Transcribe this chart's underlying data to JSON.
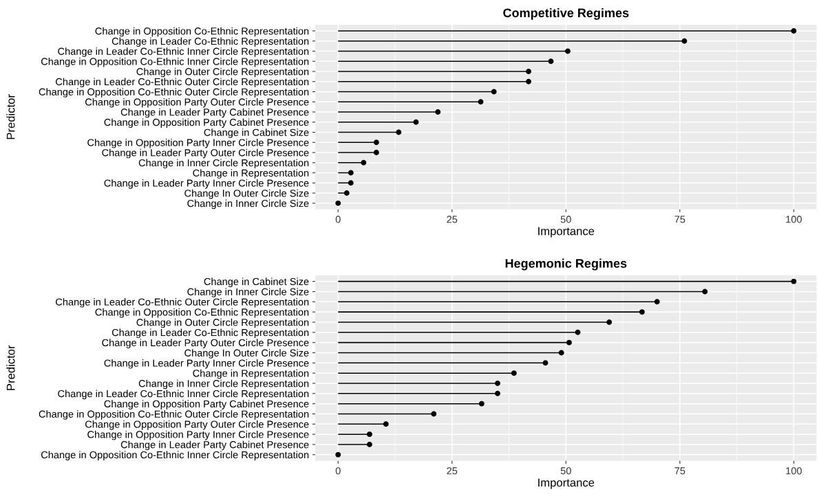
{
  "chart_data": [
    {
      "type": "lollipop",
      "orientation": "horizontal",
      "title": "Competitive Regimes",
      "xlabel": "Importance",
      "ylabel": "Predictor",
      "categories": [
        "Change in Opposition Co-Ethnic Representation",
        "Change in Leader Co-Ethnic Representation",
        "Change in Leader Co-Ethnic Inner Circle Representation",
        "Change in Opposition Co-Ethnic Inner Circle Representation",
        "Change in Outer Circle Representation",
        "Change in Leader Co-Ethnic Outer Circle Representation",
        "Change in Opposition Co-Ethnic Outer Circle Representation",
        "Change in Opposition Party Outer Circle Presence",
        "Change in Leader Party Cabinet Presence",
        "Change in Opposition Party Cabinet Presence",
        "Change in Cabinet Size",
        "Change in Opposition Party Inner Circle Presence",
        "Change in Leader Party Outer Circle Presence",
        "Change in Inner Circle Representation",
        "Change in Representation",
        "Change in Leader Party Inner Circle Presence",
        "Change In Outer Circle Size",
        "Change in Inner Circle Size"
      ],
      "values": [
        100,
        76.0,
        50.4,
        46.7,
        41.8,
        41.8,
        34.2,
        31.3,
        21.9,
        17.1,
        13.3,
        8.4,
        8.4,
        5.6,
        2.8,
        2.8,
        1.9,
        0
      ],
      "color": "#000000",
      "marker": "circle",
      "xlim": [
        -5,
        105
      ],
      "xticks": [
        0,
        25,
        50,
        75,
        100
      ],
      "grid": true
    },
    {
      "type": "lollipop",
      "orientation": "horizontal",
      "title": "Hegemonic Regimes",
      "xlabel": "Importance",
      "ylabel": "Predictor",
      "categories": [
        "Change in Cabinet Size",
        "Change in Inner Circle Size",
        "Change in Leader Co-Ethnic Outer Circle Representation",
        "Change in Opposition Co-Ethnic Representation",
        "Change in Outer Circle Representation",
        "Change in Leader Co-Ethnic Representation",
        "Change in Leader Party Outer Circle Presence",
        "Change In Outer Circle Size",
        "Change in Leader Party Inner Circle Presence",
        "Change in Representation",
        "Change in Inner Circle Representation",
        "Change in Leader Co-Ethnic Inner Circle Representation",
        "Change in Opposition Party Cabinet Presence",
        "Change in Opposition Co-Ethnic Outer Circle Representation",
        "Change in Opposition Party Outer Circle Presence",
        "Change in Opposition Party Inner Circle Presence",
        "Change in Leader Party Cabinet Presence",
        "Change in Opposition Co-Ethnic Inner Circle Representation"
      ],
      "values": [
        100,
        80.5,
        70.0,
        66.7,
        59.5,
        52.6,
        50.7,
        49.0,
        45.5,
        38.6,
        35.0,
        35.0,
        31.5,
        21.0,
        10.5,
        6.9,
        6.9,
        0
      ],
      "color": "#000000",
      "marker": "circle",
      "xlim": [
        -5,
        105
      ],
      "xticks": [
        0,
        25,
        50,
        75,
        100
      ],
      "grid": true
    }
  ]
}
